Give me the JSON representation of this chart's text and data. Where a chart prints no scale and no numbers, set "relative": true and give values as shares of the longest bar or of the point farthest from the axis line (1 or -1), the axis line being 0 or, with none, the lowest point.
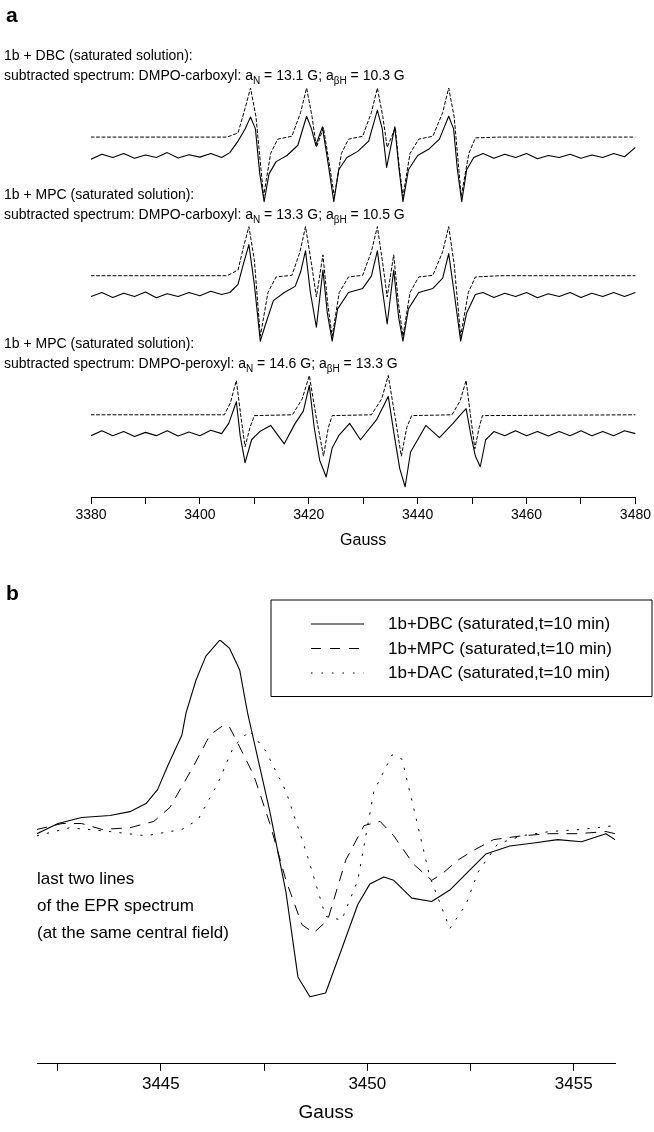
{
  "chart_data": [
    {
      "type": "line",
      "title": "a",
      "xlabel": "Gauss",
      "relative": true,
      "xlim": [
        3380,
        3480
      ],
      "xticks": [
        3380,
        {
          "value": 3390,
          "label": null
        },
        3400,
        {
          "value": 3410,
          "label": null
        },
        3420,
        {
          "value": 3430,
          "label": null
        },
        3440,
        {
          "value": 3450,
          "label": null
        },
        3460,
        {
          "value": 3470,
          "label": null
        },
        3480
      ],
      "annotations": [
        "1b + DBC (saturated solution):",
        "subtracted spectrum: DMPO-carboxyl: a$_{N}$ = 13.1 G; a$_{βH}$ = 10.3 G",
        "1b + MPC (saturated solution):",
        "subtracted spectrum: DMPO-carboxyl: a$_{N}$ = 13.3 G; a$_{βH}$ = 10.5 G",
        "1b + MPC (saturated solution):",
        "subtracted spectrum: DMPO-peroxyl: a$_{N}$ = 14.6 G; a$_{βH}$ = 13.3 G"
      ],
      "series": [
        {
          "color": "#000000",
          "line_style": "solid",
          "x": [
            3380,
            3382,
            3384,
            3386,
            3388,
            3390,
            3392,
            3394,
            3396,
            3398,
            3400,
            3402,
            3404,
            3405.5,
            3407,
            3408.3,
            3409.3,
            3410.2,
            3411,
            3411.8,
            3412.7,
            3414,
            3416,
            3418,
            3419.6,
            3420.5,
            3421.3,
            3422.5,
            3423.5,
            3424.6,
            3425.5,
            3427,
            3429,
            3431,
            3432.6,
            3433.5,
            3434.3,
            3435.8,
            3436.6,
            3437.3,
            3438.3,
            3440,
            3442,
            3444,
            3445.7,
            3446.6,
            3447.3,
            3448.1,
            3449,
            3450.3,
            3452,
            3454,
            3456,
            3458,
            3460,
            3462,
            3464,
            3466,
            3468,
            3470,
            3472,
            3474,
            3476,
            3478,
            3480
          ],
          "values": [
            0.826,
            0.838,
            0.83,
            0.84,
            0.828,
            0.836,
            0.83,
            0.842,
            0.829,
            0.837,
            0.831,
            0.84,
            0.83,
            0.842,
            0.87,
            0.9,
            0.929,
            0.9,
            0.79,
            0.722,
            0.79,
            0.82,
            0.835,
            0.86,
            0.931,
            0.9,
            0.86,
            0.905,
            0.82,
            0.722,
            0.8,
            0.83,
            0.845,
            0.87,
            0.946,
            0.9,
            0.806,
            0.905,
            0.8,
            0.722,
            0.8,
            0.835,
            0.85,
            0.875,
            0.931,
            0.9,
            0.8,
            0.722,
            0.8,
            0.83,
            0.84,
            0.828,
            0.838,
            0.83,
            0.84,
            0.827,
            0.835,
            0.83,
            0.838,
            0.828,
            0.836,
            0.83,
            0.84,
            0.832,
            0.855
          ]
        },
        {
          "color": "#000000",
          "line_style": "dashed",
          "x": [
            3380,
            3405,
            3407,
            3408.3,
            3409.3,
            3410.3,
            3411.7,
            3413,
            3414.3,
            3416.9,
            3418.5,
            3419.6,
            3420.6,
            3421.4,
            3422.7,
            3423.7,
            3424.7,
            3426,
            3427.3,
            3429.9,
            3431.5,
            3432.6,
            3433.6,
            3434.4,
            3435.9,
            3436.5,
            3437.3,
            3438.6,
            3440.2,
            3442.8,
            3444.6,
            3445.7,
            3446.7,
            3448,
            3449.4,
            3450.6,
            3455,
            3480
          ],
          "values": [
            0.88,
            0.88,
            0.89,
            0.95,
            1.0,
            0.93,
            0.735,
            0.84,
            0.875,
            0.882,
            0.94,
            1.0,
            0.93,
            0.855,
            0.903,
            0.82,
            0.735,
            0.84,
            0.875,
            0.882,
            0.94,
            1.0,
            0.93,
            0.855,
            0.903,
            0.82,
            0.735,
            0.84,
            0.875,
            0.882,
            0.94,
            1.0,
            0.93,
            0.735,
            0.84,
            0.878,
            0.88,
            0.88
          ]
        },
        {
          "color": "#000000",
          "line_style": "solid",
          "x": [
            3380,
            3382,
            3384,
            3386,
            3388,
            3390,
            3392,
            3394,
            3396,
            3398,
            3400,
            3402,
            3404,
            3405.5,
            3407,
            3408,
            3409,
            3410,
            3411.1,
            3412,
            3413.5,
            3415.5,
            3417.5,
            3418.5,
            3419.4,
            3420.3,
            3421.4,
            3422.6,
            3423.4,
            3424.3,
            3425.3,
            3427.3,
            3429.9,
            3431.5,
            3432.6,
            3433.6,
            3434.4,
            3435.6,
            3436.5,
            3437.3,
            3438.3,
            3440.2,
            3442.8,
            3444.6,
            3445.7,
            3446.7,
            3447.9,
            3449,
            3450.6,
            3452,
            3454,
            3456,
            3458,
            3460,
            3462,
            3464,
            3466,
            3468,
            3470,
            3472,
            3474,
            3476,
            3478,
            3480
          ],
          "values": [
            0.49,
            0.5,
            0.488,
            0.498,
            0.49,
            0.501,
            0.487,
            0.497,
            0.49,
            0.5,
            0.492,
            0.503,
            0.495,
            0.5,
            0.52,
            0.57,
            0.617,
            0.52,
            0.381,
            0.42,
            0.48,
            0.5,
            0.515,
            0.55,
            0.602,
            0.5,
            0.415,
            0.555,
            0.45,
            0.381,
            0.46,
            0.5,
            0.51,
            0.54,
            0.602,
            0.5,
            0.423,
            0.555,
            0.44,
            0.381,
            0.46,
            0.5,
            0.51,
            0.535,
            0.595,
            0.5,
            0.381,
            0.45,
            0.495,
            0.5,
            0.488,
            0.498,
            0.49,
            0.5,
            0.487,
            0.497,
            0.49,
            0.5,
            0.488,
            0.498,
            0.49,
            0.5,
            0.49,
            0.5
          ]
        },
        {
          "color": "#000000",
          "line_style": "dashed",
          "x": [
            3380,
            3405,
            3407,
            3408,
            3409,
            3410,
            3411.1,
            3412.5,
            3414,
            3416.9,
            3418.4,
            3419.4,
            3420.5,
            3421.4,
            3422.6,
            3423.5,
            3424.3,
            3425.6,
            3427.3,
            3429.9,
            3431.5,
            3432.6,
            3433.6,
            3434.4,
            3435.6,
            3436.5,
            3437.3,
            3438.6,
            3440.2,
            3442.8,
            3444.6,
            3445.7,
            3446.7,
            3447.9,
            3449.3,
            3450.6,
            3455,
            3480
          ],
          "values": [
            0.541,
            0.541,
            0.555,
            0.61,
            0.661,
            0.58,
            0.393,
            0.5,
            0.538,
            0.542,
            0.6,
            0.661,
            0.57,
            0.489,
            0.592,
            0.47,
            0.393,
            0.5,
            0.538,
            0.542,
            0.6,
            0.661,
            0.57,
            0.489,
            0.592,
            0.47,
            0.393,
            0.5,
            0.538,
            0.542,
            0.6,
            0.661,
            0.57,
            0.393,
            0.5,
            0.538,
            0.541,
            0.541
          ]
        },
        {
          "color": "#000000",
          "line_style": "solid",
          "x": [
            3380,
            3382,
            3384,
            3386,
            3388,
            3390,
            3392,
            3394,
            3396,
            3398,
            3400,
            3402,
            3404,
            3405.3,
            3406.7,
            3407.4,
            3408.3,
            3409.5,
            3411,
            3413,
            3415.5,
            3417.5,
            3419,
            3420.1,
            3421,
            3422,
            3423.2,
            3424.3,
            3425.5,
            3427.5,
            3429.5,
            3432.5,
            3434.6,
            3435.6,
            3436.7,
            3437.7,
            3438.7,
            3440,
            3441.5,
            3444,
            3446.5,
            3447.8,
            3448.9,
            3449.8,
            3450.6,
            3451.5,
            3452.5,
            3454,
            3456,
            3458,
            3460,
            3462,
            3464,
            3466,
            3468,
            3470,
            3472,
            3474,
            3476,
            3478,
            3480
          ],
          "values": [
            0.15,
            0.162,
            0.15,
            0.16,
            0.148,
            0.158,
            0.15,
            0.162,
            0.149,
            0.159,
            0.15,
            0.163,
            0.155,
            0.18,
            0.233,
            0.15,
            0.084,
            0.14,
            0.16,
            0.175,
            0.13,
            0.18,
            0.21,
            0.273,
            0.17,
            0.09,
            0.049,
            0.12,
            0.15,
            0.18,
            0.14,
            0.19,
            0.246,
            0.16,
            0.07,
            0.025,
            0.11,
            0.14,
            0.175,
            0.145,
            0.18,
            0.2,
            0.216,
            0.15,
            0.1,
            0.074,
            0.14,
            0.16,
            0.15,
            0.162,
            0.15,
            0.16,
            0.149,
            0.16,
            0.15,
            0.162,
            0.15,
            0.16,
            0.15,
            0.162,
            0.155
          ]
        },
        {
          "color": "#000000",
          "line_style": "dashed",
          "x": [
            3380,
            3404.5,
            3405.6,
            3406.7,
            3407.5,
            3408.3,
            3409.2,
            3410,
            3417,
            3418.8,
            3420.1,
            3421.3,
            3422.7,
            3423.6,
            3424.3,
            3431.5,
            3433.4,
            3434.6,
            3435.8,
            3437,
            3438,
            3438.9,
            3446.3,
            3447.8,
            3448.9,
            3449.7,
            3450.5,
            3451.3,
            3451.9,
            3480
          ],
          "values": [
            0.201,
            0.201,
            0.23,
            0.285,
            0.2,
            0.123,
            0.17,
            0.199,
            0.201,
            0.24,
            0.297,
            0.2,
            0.1,
            0.17,
            0.199,
            0.201,
            0.24,
            0.297,
            0.2,
            0.1,
            0.17,
            0.199,
            0.201,
            0.235,
            0.285,
            0.2,
            0.118,
            0.17,
            0.199,
            0.201
          ]
        }
      ]
    },
    {
      "type": "line",
      "title": "b",
      "xlabel": "Gauss",
      "relative": true,
      "xlim": [
        3442,
        3456
      ],
      "xticks": [
        {
          "value": 3442.5,
          "label": null
        },
        3445,
        {
          "value": 3447.5,
          "label": null
        },
        3450,
        {
          "value": 3452.5,
          "label": null
        },
        3455
      ],
      "legend": "top right",
      "annotations": [
        "last two lines",
        "of the EPR spectrum",
        "(at the same central field)"
      ],
      "series": [
        {
          "name": "1b+DBC (saturated,t=10 min)",
          "color": "#000000",
          "line_style": "solid",
          "x": [
            3442,
            3442.51,
            3443.08,
            3443.77,
            3444.25,
            3444.64,
            3444.92,
            3445.17,
            3445.51,
            3445.61,
            3445.85,
            3446.09,
            3446.43,
            3446.66,
            3446.91,
            3447.1,
            3447.64,
            3448.03,
            3448.32,
            3448.61,
            3448.99,
            3449.38,
            3449.77,
            3450.06,
            3450.4,
            3450.64,
            3451.08,
            3451.56,
            3452,
            3452.39,
            3452.87,
            3453.45,
            3454.03,
            3454.61,
            3455.19,
            3455.78,
            3456
          ],
          "values": [
            0.543,
            0.567,
            0.581,
            0.586,
            0.595,
            0.614,
            0.647,
            0.704,
            0.776,
            0.828,
            0.905,
            0.962,
            1.0,
            0.981,
            0.929,
            0.828,
            0.595,
            0.405,
            0.205,
            0.158,
            0.167,
            0.271,
            0.376,
            0.424,
            0.441,
            0.433,
            0.391,
            0.383,
            0.41,
            0.448,
            0.495,
            0.514,
            0.521,
            0.529,
            0.524,
            0.543,
            0.529
          ]
        },
        {
          "name": "1b+MPC (saturated,t=10 min)",
          "color": "#000000",
          "line_style": "dashed",
          "x": [
            3442,
            3442.61,
            3443.08,
            3443.57,
            3444.25,
            3444.83,
            3445.22,
            3445.8,
            3446.19,
            3446.53,
            3446.66,
            3446.86,
            3447.25,
            3447.64,
            3448.03,
            3448.42,
            3448.7,
            3449.04,
            3449.48,
            3449.92,
            3450.31,
            3450.64,
            3451.12,
            3451.56,
            3451.81,
            3452.2,
            3452.58,
            3453.06,
            3453.74,
            3454.42,
            3455.11,
            3455.78,
            3456
          ],
          "values": [
            0.553,
            0.567,
            0.567,
            0.553,
            0.557,
            0.572,
            0.605,
            0.704,
            0.776,
            0.8,
            0.795,
            0.757,
            0.681,
            0.567,
            0.433,
            0.328,
            0.309,
            0.339,
            0.481,
            0.562,
            0.572,
            0.538,
            0.471,
            0.433,
            0.448,
            0.481,
            0.504,
            0.529,
            0.538,
            0.543,
            0.543,
            0.548,
            0.543
          ]
        },
        {
          "name": "1b+DAC (saturated,t=10 min)",
          "color": "#000000",
          "line_style": "dotted",
          "x": [
            3442,
            3442.79,
            3443.77,
            3444.64,
            3445.51,
            3445.9,
            3446.38,
            3446.76,
            3447.15,
            3447.54,
            3448.03,
            3448.52,
            3448.99,
            3449.38,
            3449.77,
            3450.16,
            3450.6,
            3450.84,
            3451.12,
            3451.51,
            3452,
            3452.39,
            3452.68,
            3453.16,
            3453.74,
            3454.42,
            3455.19,
            3456
          ],
          "values": [
            0.538,
            0.557,
            0.548,
            0.538,
            0.553,
            0.576,
            0.662,
            0.748,
            0.786,
            0.738,
            0.643,
            0.5,
            0.348,
            0.339,
            0.433,
            0.643,
            0.729,
            0.719,
            0.605,
            0.443,
            0.319,
            0.376,
            0.452,
            0.519,
            0.538,
            0.548,
            0.553,
            0.562
          ]
        }
      ]
    }
  ]
}
